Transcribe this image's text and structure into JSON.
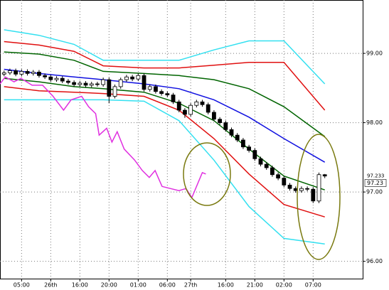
{
  "chart_data": {
    "type": "candlestick",
    "categories": [
      null,
      null,
      null,
      "05:00",
      null,
      null,
      null,
      null,
      "26th",
      null,
      null,
      null,
      null,
      "16:00",
      null,
      null,
      null,
      null,
      "20:00",
      null,
      null,
      null,
      null,
      "01:00",
      null,
      null,
      null,
      null,
      "06:00",
      null,
      null,
      null,
      "27th",
      null,
      null,
      null,
      null,
      null,
      "16:00",
      null,
      null,
      null,
      null,
      "21:00",
      null,
      null,
      null,
      null,
      "02:00",
      null,
      null,
      null,
      null,
      "07:00",
      null,
      null
    ],
    "open": [
      98.7,
      98.72,
      98.75,
      98.7,
      98.74,
      98.71,
      98.73,
      98.68,
      98.66,
      98.62,
      98.64,
      98.6,
      98.58,
      98.55,
      98.57,
      98.54,
      98.56,
      98.55,
      98.62,
      98.38,
      98.52,
      98.62,
      98.66,
      98.63,
      98.68,
      98.48,
      98.52,
      98.45,
      98.42,
      98.4,
      98.3,
      98.18,
      98.12,
      98.25,
      98.3,
      98.26,
      98.15,
      98.05,
      98.0,
      97.9,
      97.82,
      97.75,
      97.65,
      97.6,
      97.48,
      97.4,
      97.35,
      97.25,
      97.2,
      97.1,
      97.05,
      97.02,
      97.05,
      97.04,
      96.87,
      97.25
    ],
    "high": [
      98.75,
      98.78,
      98.78,
      98.77,
      98.77,
      98.76,
      98.76,
      98.71,
      98.69,
      98.67,
      98.67,
      98.63,
      98.61,
      98.6,
      98.6,
      98.59,
      98.59,
      98.65,
      98.65,
      98.55,
      98.65,
      98.69,
      98.69,
      98.71,
      98.71,
      98.55,
      98.55,
      98.48,
      98.45,
      98.43,
      98.33,
      98.21,
      98.28,
      98.33,
      98.33,
      98.29,
      98.18,
      98.08,
      98.03,
      97.93,
      97.85,
      97.78,
      97.68,
      97.63,
      97.51,
      97.43,
      97.38,
      97.28,
      97.23,
      97.13,
      97.08,
      97.08,
      97.08,
      97.07,
      97.28,
      97.26
    ],
    "low": [
      98.67,
      98.69,
      98.67,
      98.67,
      98.68,
      98.68,
      98.65,
      98.63,
      98.59,
      98.59,
      98.57,
      98.55,
      98.52,
      98.52,
      98.51,
      98.51,
      98.52,
      98.52,
      98.28,
      98.35,
      98.49,
      98.59,
      98.6,
      98.6,
      98.45,
      98.45,
      98.42,
      98.39,
      98.37,
      98.27,
      98.15,
      98.07,
      98.09,
      98.22,
      98.23,
      98.12,
      98.02,
      97.97,
      97.87,
      97.79,
      97.72,
      97.62,
      97.57,
      97.45,
      97.37,
      97.32,
      97.22,
      97.17,
      97.07,
      97.02,
      96.99,
      96.99,
      97.01,
      96.84,
      96.84,
      97.2
    ],
    "close": [
      98.72,
      98.75,
      98.7,
      98.74,
      98.71,
      98.73,
      98.68,
      98.66,
      98.62,
      98.64,
      98.6,
      98.58,
      98.55,
      98.57,
      98.54,
      98.56,
      98.55,
      98.62,
      98.38,
      98.52,
      98.62,
      98.66,
      98.63,
      98.68,
      98.48,
      98.52,
      98.45,
      98.42,
      98.4,
      98.3,
      98.18,
      98.12,
      98.25,
      98.3,
      98.26,
      98.15,
      98.05,
      98.0,
      97.9,
      97.82,
      97.75,
      97.65,
      97.6,
      97.48,
      97.4,
      97.35,
      97.25,
      97.2,
      97.1,
      97.05,
      97.02,
      97.05,
      97.04,
      96.87,
      97.25,
      97.23
    ],
    "up_color": "#ffffff",
    "down_color": "#000000",
    "series": [
      {
        "color": "#33e0f0",
        "x": [
          0,
          6,
          12,
          17,
          24,
          30,
          36,
          42,
          48,
          55
        ],
        "values": [
          99.34,
          99.26,
          99.13,
          98.9,
          98.9,
          98.9,
          99.05,
          99.18,
          99.18,
          98.56
        ]
      },
      {
        "color": "#e01010",
        "x": [
          0,
          6,
          12,
          17,
          24,
          30,
          36,
          42,
          48,
          55
        ],
        "values": [
          99.17,
          99.12,
          99.03,
          98.82,
          98.79,
          98.79,
          98.83,
          98.87,
          98.87,
          98.18
        ]
      },
      {
        "color": "#006400",
        "x": [
          0,
          6,
          12,
          17,
          24,
          30,
          36,
          42,
          48,
          55
        ],
        "values": [
          99.02,
          98.99,
          98.9,
          98.74,
          98.71,
          98.68,
          98.62,
          98.49,
          98.23,
          97.8
        ]
      },
      {
        "color": "#1010e0",
        "x": [
          0,
          6,
          12,
          17,
          24,
          30,
          36,
          42,
          48,
          55
        ],
        "values": [
          98.77,
          98.71,
          98.66,
          98.62,
          98.56,
          98.49,
          98.33,
          98.08,
          97.77,
          97.43
        ]
      },
      {
        "color": "#006400",
        "x": [
          0,
          6,
          12,
          17,
          24,
          30,
          36,
          42,
          48,
          55
        ],
        "values": [
          98.64,
          98.59,
          98.52,
          98.49,
          98.44,
          98.28,
          98.03,
          97.62,
          97.23,
          97.03
        ]
      },
      {
        "color": "#e01010",
        "x": [
          0,
          6,
          12,
          17,
          24,
          30,
          36,
          42,
          48,
          55
        ],
        "values": [
          98.52,
          98.46,
          98.44,
          98.42,
          98.38,
          98.18,
          97.77,
          97.26,
          96.82,
          96.64
        ]
      },
      {
        "color": "#33e0f0",
        "x": [
          0,
          6,
          12,
          17,
          24,
          30,
          36,
          42,
          48,
          55
        ],
        "values": [
          98.33,
          98.33,
          98.33,
          98.33,
          98.31,
          98.03,
          97.46,
          96.79,
          96.33,
          96.25
        ]
      },
      {
        "color": "#e030e0",
        "x": [
          -0.7,
          0.2,
          1.7,
          2.9,
          4.8,
          6.6,
          8.4,
          10.2,
          11.5,
          13.3,
          14.5,
          15.7,
          16.3,
          17.6,
          18.5,
          19.4,
          20.6,
          22.4,
          23.7,
          24.9,
          25.9,
          27.1,
          28.5,
          30.0,
          31.2,
          32.2,
          34.0,
          34.6
        ],
        "values": [
          98.56,
          98.66,
          98.59,
          98.64,
          98.54,
          98.54,
          98.38,
          98.18,
          98.33,
          98.38,
          98.23,
          98.13,
          97.82,
          97.92,
          97.72,
          97.87,
          97.62,
          97.46,
          97.31,
          97.21,
          97.31,
          97.08,
          97.05,
          97.02,
          97.05,
          96.92,
          97.28,
          97.26
        ]
      }
    ],
    "xlim": [
      -0.7,
      61.5
    ],
    "ylim": [
      95.75,
      99.77
    ],
    "yticks": [
      {
        "value": 96,
        "label": "96.00"
      },
      {
        "value": 97,
        "label": "97.00"
      },
      {
        "value": 98,
        "label": "98.00"
      },
      {
        "value": 99,
        "label": "99.00"
      }
    ],
    "price_marker": 97.233,
    "price_box": {
      "value": 97.233,
      "label": "97.23"
    },
    "marker_color": "#d01010",
    "grid": true
  }
}
